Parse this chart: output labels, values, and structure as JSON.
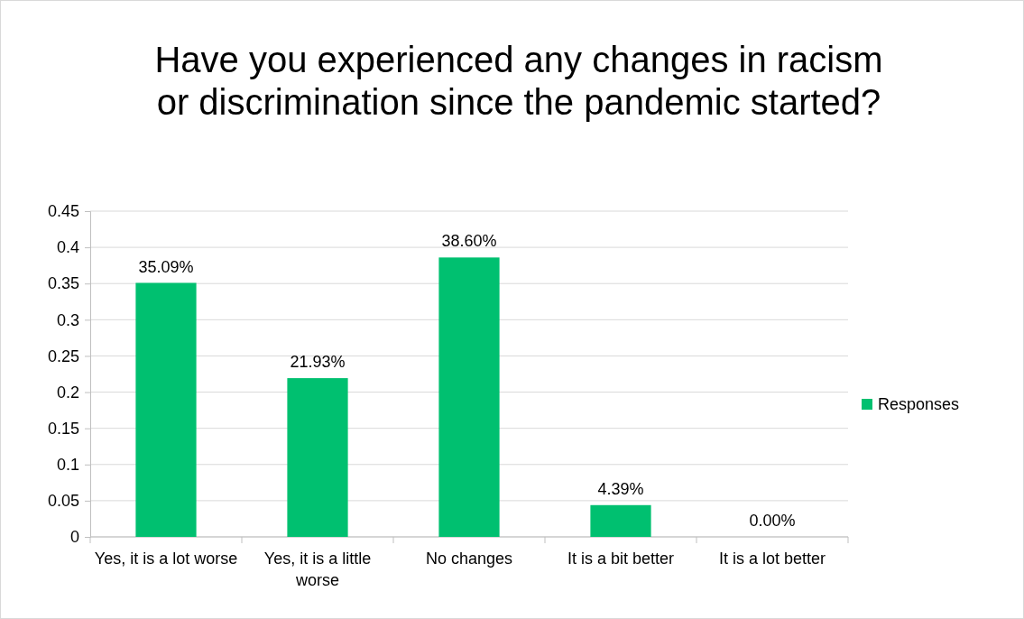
{
  "chart_data": {
    "type": "bar",
    "title": "Have you experienced any changes in racism or discrimination since the pandemic started?",
    "categories": [
      "Yes, it is a lot worse",
      "Yes, it is a little worse",
      "No changes",
      "It is a bit better",
      "It is a lot better"
    ],
    "series": [
      {
        "name": "Responses",
        "color": "#00c070",
        "values": [
          0.3509,
          0.2193,
          0.386,
          0.0439,
          0
        ],
        "value_labels": [
          "35.09%",
          "21.93%",
          "38.60%",
          "4.39%",
          "0.00%"
        ]
      }
    ],
    "ylim": [
      0,
      0.45
    ],
    "yticks": [
      0,
      0.05,
      0.1,
      0.15,
      0.2,
      0.25,
      0.3,
      0.35,
      0.4,
      0.45
    ],
    "grid": "y",
    "legend": "right"
  }
}
